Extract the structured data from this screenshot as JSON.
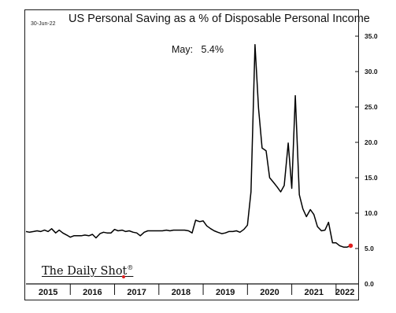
{
  "header": {
    "date": "30-Jun-22",
    "title": "US Personal Saving as a % of Disposable Personal Income"
  },
  "annotation": "May:   5.4%",
  "source": "The Daily Shot",
  "source_mark": "®",
  "colors": {
    "line": "#000000",
    "highlight": "#e02020",
    "frame": "#1a1a1a"
  },
  "chart_data": {
    "type": "line",
    "title": "US Personal Saving as a % of Disposable Personal Income",
    "xlabel": "",
    "ylabel": "",
    "ylim": [
      0,
      35
    ],
    "xlim": [
      2015.0,
      2022.5
    ],
    "yticks": [
      0,
      5,
      10,
      15,
      20,
      25,
      30,
      35
    ],
    "ytick_labels": [
      "0.0",
      "5.0",
      "10.0",
      "15.0",
      "20.0",
      "25.0",
      "30.0",
      "35.0"
    ],
    "y_axis_side": "right",
    "grid": false,
    "xtick_labels": [
      "2015",
      "2016",
      "2017",
      "2018",
      "2019",
      "2020",
      "2021",
      "2022"
    ],
    "xtick_positions": [
      2015.5,
      2016.5,
      2017.5,
      2018.5,
      2019.5,
      2020.5,
      2021.5,
      2022.2
    ],
    "x": [
      2015.0,
      2015.08,
      2015.17,
      2015.25,
      2015.33,
      2015.42,
      2015.5,
      2015.58,
      2015.67,
      2015.75,
      2015.83,
      2015.92,
      2016.0,
      2016.08,
      2016.17,
      2016.25,
      2016.33,
      2016.42,
      2016.5,
      2016.58,
      2016.67,
      2016.75,
      2016.83,
      2016.92,
      2017.0,
      2017.08,
      2017.17,
      2017.25,
      2017.33,
      2017.42,
      2017.5,
      2017.58,
      2017.67,
      2017.75,
      2017.83,
      2017.92,
      2018.0,
      2018.08,
      2018.17,
      2018.25,
      2018.33,
      2018.42,
      2018.5,
      2018.58,
      2018.67,
      2018.75,
      2018.83,
      2018.92,
      2019.0,
      2019.08,
      2019.17,
      2019.25,
      2019.33,
      2019.42,
      2019.5,
      2019.58,
      2019.67,
      2019.75,
      2019.83,
      2019.92,
      2020.0,
      2020.08,
      2020.17,
      2020.25,
      2020.33,
      2020.42,
      2020.5,
      2020.58,
      2020.67,
      2020.75,
      2020.83,
      2020.92,
      2021.0,
      2021.08,
      2021.17,
      2021.25,
      2021.33,
      2021.42,
      2021.5,
      2021.58,
      2021.67,
      2021.75,
      2021.83,
      2021.92,
      2022.0,
      2022.08,
      2022.17,
      2022.25,
      2022.33
    ],
    "series": [
      {
        "values": [
          7.4,
          7.3,
          7.4,
          7.5,
          7.4,
          7.6,
          7.4,
          7.8,
          7.2,
          7.6,
          7.2,
          6.9,
          6.6,
          6.8,
          6.8,
          6.8,
          6.9,
          6.8,
          7.0,
          6.5,
          7.1,
          7.3,
          7.2,
          7.2,
          7.7,
          7.5,
          7.6,
          7.4,
          7.5,
          7.3,
          7.2,
          6.8,
          7.3,
          7.5,
          7.5,
          7.5,
          7.5,
          7.5,
          7.6,
          7.5,
          7.6,
          7.6,
          7.6,
          7.6,
          7.5,
          7.2,
          9.0,
          8.8,
          8.9,
          8.2,
          7.8,
          7.5,
          7.3,
          7.1,
          7.2,
          7.4,
          7.4,
          7.5,
          7.3,
          7.7,
          8.3,
          13.0,
          33.8,
          24.8,
          19.2,
          18.8,
          15.0,
          14.4,
          13.7,
          13.0,
          13.9,
          19.9,
          13.5,
          26.6,
          12.6,
          10.6,
          9.5,
          10.5,
          9.8,
          8.1,
          7.5,
          7.6,
          8.7,
          5.8,
          5.8,
          5.4,
          5.2,
          5.2,
          5.4
        ]
      }
    ],
    "highlight_last_point": true
  }
}
